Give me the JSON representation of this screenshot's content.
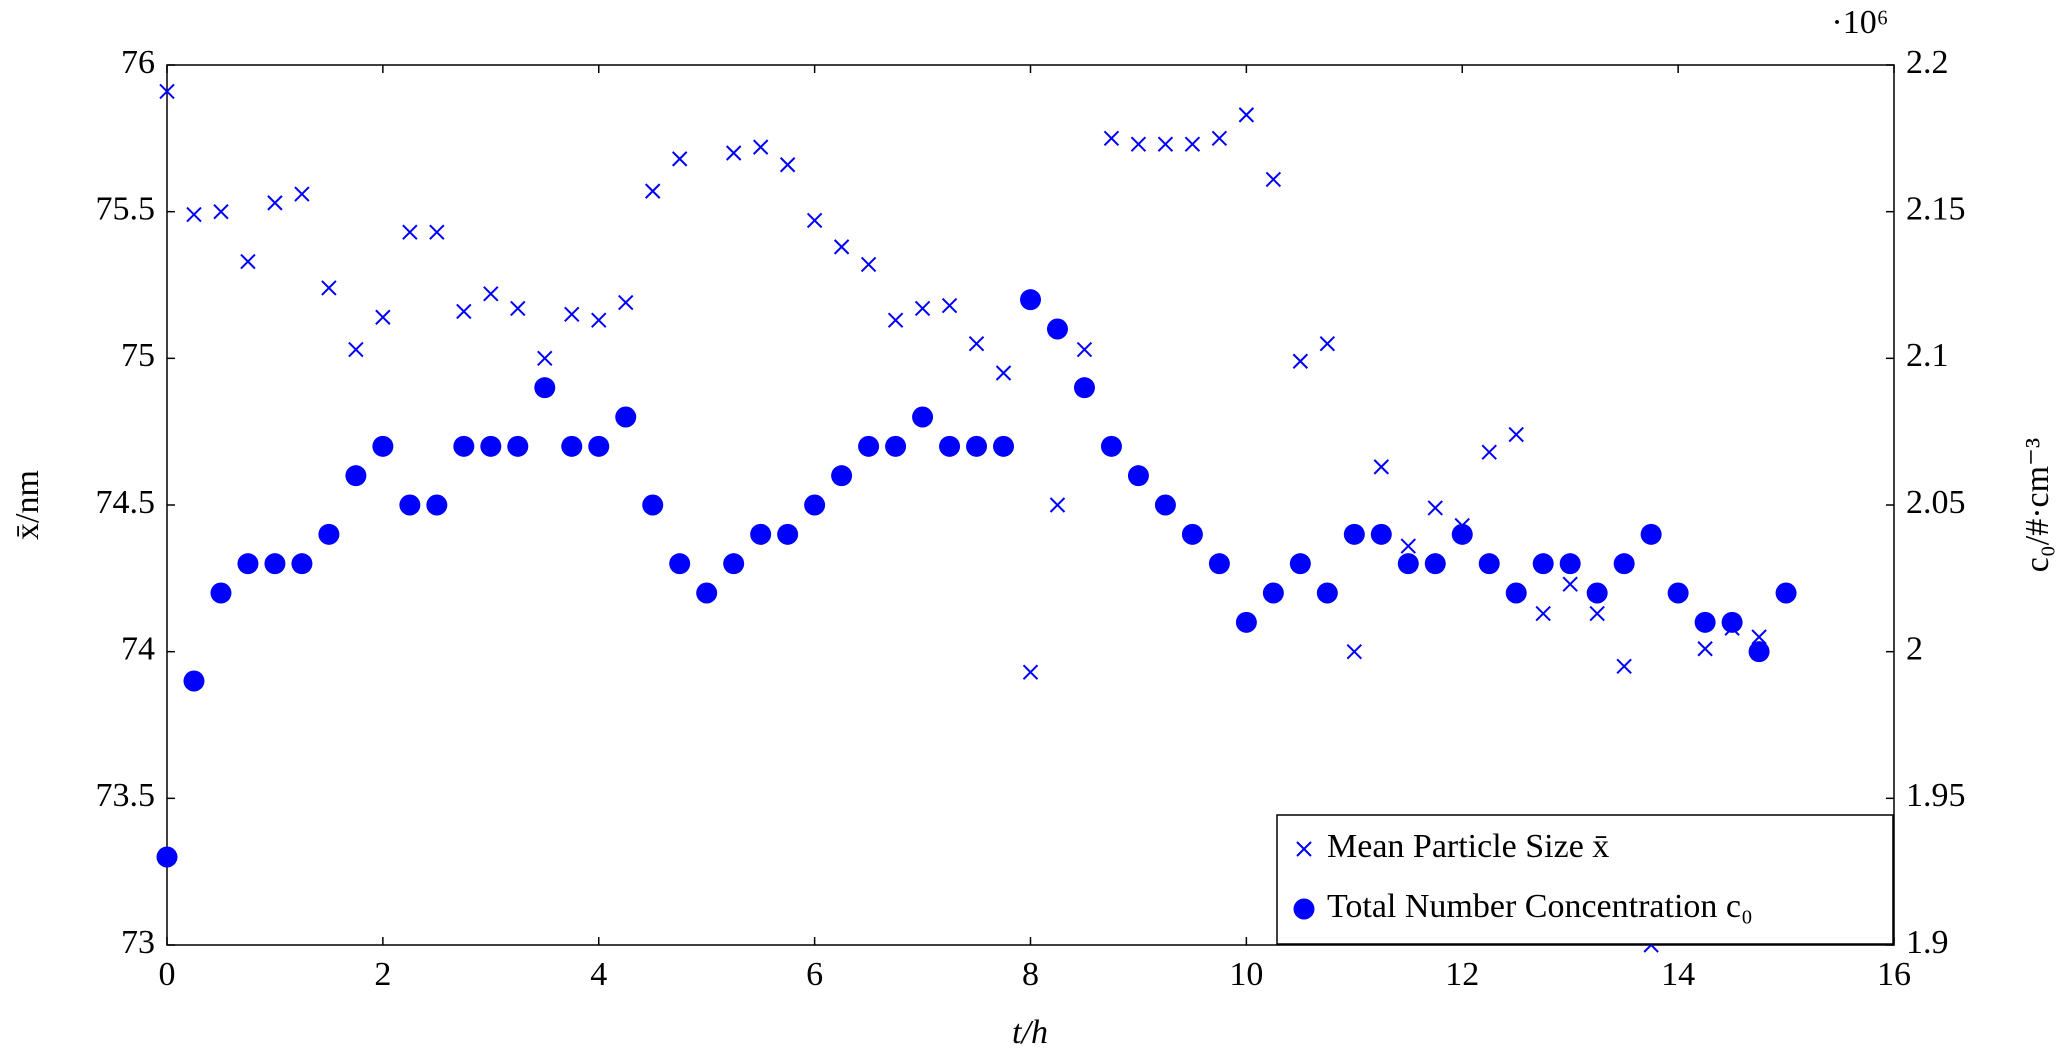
{
  "chart_data": {
    "type": "scatter",
    "x": [
      0,
      0.25,
      0.5,
      0.75,
      1,
      1.25,
      1.5,
      1.75,
      2,
      2.25,
      2.5,
      2.75,
      3,
      3.25,
      3.5,
      3.75,
      4,
      4.25,
      4.5,
      4.75,
      5,
      5.25,
      5.5,
      5.75,
      6,
      6.25,
      6.5,
      6.75,
      7,
      7.25,
      7.5,
      7.75,
      8,
      8.25,
      8.5,
      8.75,
      9,
      9.25,
      9.5,
      9.75,
      10,
      10.25,
      10.5,
      10.75,
      11,
      11.25,
      11.5,
      11.75,
      12,
      12.25,
      12.5,
      12.75,
      13,
      13.25,
      13.5,
      13.75,
      14,
      14.25,
      14.5,
      14.75,
      15
    ],
    "series": [
      {
        "name": "Mean Particle Size x̄",
        "color": "#0000ff",
        "marker": "cross",
        "values": [
          75.91,
          75.49,
          75.5,
          75.33,
          75.53,
          75.56,
          75.24,
          75.03,
          75.14,
          75.43,
          75.43,
          75.16,
          75.22,
          75.17,
          75.0,
          75.15,
          75.13,
          75.19,
          75.57,
          75.68,
          null,
          75.7,
          75.72,
          75.66,
          75.47,
          75.38,
          75.32,
          75.13,
          75.17,
          75.18,
          75.05,
          74.95,
          73.93,
          74.5,
          75.03,
          75.75,
          75.73,
          75.73,
          75.73,
          75.75,
          75.83,
          75.61,
          74.99,
          75.05,
          74.0,
          74.63,
          74.36,
          74.49,
          74.43,
          74.68,
          74.74,
          74.13,
          74.23,
          74.13,
          73.95,
          73.0,
          null,
          74.01,
          74.08,
          74.05,
          null
        ]
      },
      {
        "name": "Total Number Concentration c₀",
        "color": "#0000ff",
        "marker": "circle",
        "axis": "y2",
        "values": [
          1.93,
          1.99,
          2.02,
          2.03,
          2.03,
          2.03,
          2.04,
          2.06,
          2.07,
          2.05,
          2.05,
          2.07,
          2.07,
          2.07,
          2.09,
          2.07,
          2.07,
          2.08,
          2.05,
          2.03,
          2.02,
          2.03,
          2.04,
          2.04,
          2.05,
          2.06,
          2.07,
          2.07,
          2.08,
          2.07,
          2.07,
          2.07,
          2.12,
          2.11,
          2.09,
          2.07,
          2.06,
          2.05,
          2.04,
          2.03,
          2.01,
          2.02,
          2.03,
          2.02,
          2.04,
          2.04,
          2.03,
          2.03,
          2.04,
          2.03,
          2.02,
          2.03,
          2.03,
          2.02,
          2.03,
          2.04,
          2.02,
          2.01,
          2.01,
          2.0,
          2.02
        ]
      }
    ],
    "x_label": "t/h",
    "y_label": "x̄/nm",
    "y2_label": "c₀/#·cm⁻³",
    "y2_multiplier": "·10⁶",
    "xlim": [
      0,
      16
    ],
    "xticks": [
      0,
      2,
      4,
      6,
      8,
      10,
      12,
      14,
      16
    ],
    "ylim": [
      73,
      76
    ],
    "yticks": [
      73,
      73.5,
      74,
      74.5,
      75,
      75.5,
      76
    ],
    "y2lim": [
      1.9,
      2.2
    ],
    "y2ticks": [
      1.9,
      1.95,
      2,
      2.05,
      2.1,
      2.15,
      2.2
    ],
    "grid": false,
    "legend": "lower right"
  }
}
